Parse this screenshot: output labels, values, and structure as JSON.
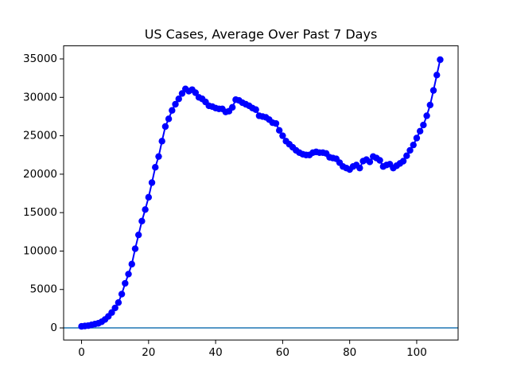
{
  "chart_data": {
    "type": "line",
    "title": "US Cases, Average Over Past 7 Days",
    "x": [
      0,
      1,
      2,
      3,
      4,
      5,
      6,
      7,
      8,
      9,
      10,
      11,
      12,
      13,
      14,
      15,
      16,
      17,
      18,
      19,
      20,
      21,
      22,
      23,
      24,
      25,
      26,
      27,
      28,
      29,
      30,
      31,
      32,
      33,
      34,
      35,
      36,
      37,
      38,
      39,
      40,
      41,
      42,
      43,
      44,
      45,
      46,
      47,
      48,
      49,
      50,
      51,
      52,
      53,
      54,
      55,
      56,
      57,
      58,
      59,
      60,
      61,
      62,
      63,
      64,
      65,
      66,
      67,
      68,
      69,
      70,
      71,
      72,
      73,
      74,
      75,
      76,
      77,
      78,
      79,
      80,
      81,
      82,
      83,
      84,
      85,
      86,
      87,
      88,
      89,
      90,
      91,
      92,
      93,
      94,
      95,
      96,
      97,
      98,
      99,
      100,
      101,
      102,
      103,
      104,
      105,
      106,
      107
    ],
    "series": [
      {
        "name": "US cases",
        "color": "#0000ff",
        "values": [
          200,
          250,
          300,
          400,
          500,
          600,
          800,
          1100,
          1500,
          2000,
          2600,
          3300,
          4400,
          5800,
          7000,
          8300,
          10300,
          12100,
          13900,
          15400,
          17000,
          18900,
          20900,
          22300,
          24300,
          26200,
          27200,
          28300,
          29100,
          29800,
          30500,
          31100,
          30800,
          31000,
          30600,
          30000,
          29800,
          29400,
          28900,
          28800,
          28600,
          28500,
          28500,
          28100,
          28200,
          28700,
          29700,
          29600,
          29300,
          29100,
          28900,
          28600,
          28400,
          27600,
          27500,
          27400,
          27100,
          26700,
          26600,
          25700,
          25000,
          24300,
          23900,
          23500,
          23100,
          22800,
          22600,
          22500,
          22500,
          22800,
          22900,
          22800,
          22800,
          22700,
          22200,
          22100,
          22000,
          21500,
          21000,
          20800,
          20600,
          21000,
          21200,
          20800,
          21700,
          21900,
          21600,
          22300,
          22100,
          21800,
          21000,
          21200,
          21300,
          20800,
          21100,
          21400,
          21700,
          22400,
          23100,
          23800,
          24700,
          25600,
          26400,
          27600,
          29000,
          30900,
          32900,
          34900
        ]
      }
    ],
    "hline": 0,
    "hline_color": "#1f77b4",
    "xlim": [
      -5.35,
      112.35
    ],
    "xticks": [
      0,
      20,
      40,
      60,
      80,
      100
    ],
    "ylim": [
      -1570,
      36700
    ],
    "yticks": [
      0,
      5000,
      10000,
      15000,
      20000,
      25000,
      30000,
      35000
    ]
  }
}
